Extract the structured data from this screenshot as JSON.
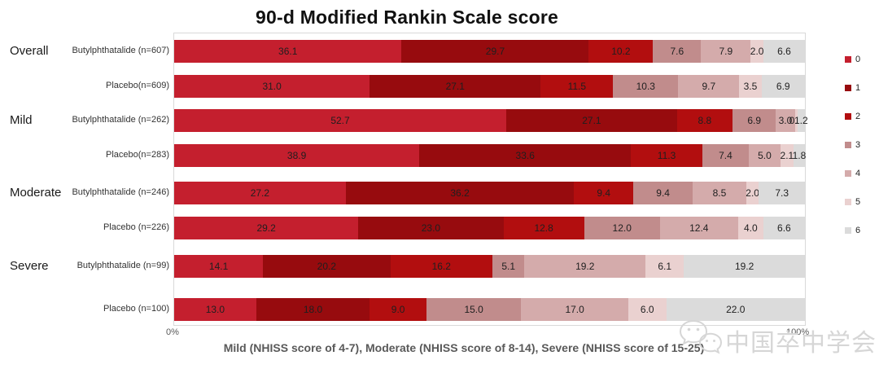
{
  "title": "90-d Modified Rankin Scale score",
  "axis": {
    "left_tick": "0%",
    "right_tick": "100%"
  },
  "caption": "Mild (NHISS score of 4-7), Moderate (NHISS score of 8-14), Severe (NHISS score of 15-25)",
  "watermark": {
    "icon": "wechat-logo",
    "text": "中国卒中学会"
  },
  "legend": {
    "position": "right",
    "items": [
      {
        "label": "0",
        "color": "#c41f2e"
      },
      {
        "label": "1",
        "color": "#970b0e"
      },
      {
        "label": "2",
        "color": "#b20e0f"
      },
      {
        "label": "3",
        "color": "#c18c8c"
      },
      {
        "label": "4",
        "color": "#d4abab"
      },
      {
        "label": "5",
        "color": "#ead1d0"
      },
      {
        "label": "6",
        "color": "#dbdbdb"
      }
    ]
  },
  "chart_data": {
    "type": "bar",
    "variant": "horizontal-stacked-100pct",
    "title": "90-d Modified Rankin Scale score",
    "stack_categories": [
      "0",
      "1",
      "2",
      "3",
      "4",
      "5",
      "6"
    ],
    "colors": [
      "#c41f2e",
      "#970b0e",
      "#b20e0f",
      "#c18c8c",
      "#d4abab",
      "#ead1d0",
      "#dbdbdb"
    ],
    "xlim": [
      0,
      100
    ],
    "x_tick_labels": [
      "0%",
      "100%"
    ],
    "grid": false,
    "legend_position": "right",
    "groups": [
      {
        "name": "Overall",
        "rows": [
          {
            "label": "Butylphthatalide (n=607)",
            "values": [
              36.1,
              29.7,
              10.2,
              7.6,
              7.9,
              2.0,
              6.6
            ],
            "value_labels": [
              "36.1",
              "29.7",
              "10.2",
              "7.6",
              "7.9",
              "2.0",
              "6.6"
            ]
          },
          {
            "label": "Placebo(n=609)",
            "values": [
              31.0,
              27.1,
              11.5,
              10.3,
              9.7,
              3.5,
              6.9
            ],
            "value_labels": [
              "31.0",
              "27.1",
              "11.5",
              "10.3",
              "9.7",
              "3.5",
              "6.9"
            ]
          }
        ]
      },
      {
        "name": "Mild",
        "rows": [
          {
            "label": "Butylphthatalide (n=262)",
            "values": [
              52.7,
              27.1,
              8.8,
              6.9,
              3.0,
              0.4,
              1.2
            ],
            "value_labels": [
              "52.7",
              "27.1",
              "8.8",
              "6.9",
              "3.0",
              "0.4",
              "1.2"
            ]
          },
          {
            "label": "Placebo(n=283)",
            "values": [
              38.9,
              33.6,
              11.3,
              7.4,
              5.0,
              2.1,
              1.8
            ],
            "value_labels": [
              "38.9",
              "33.6",
              "11.3",
              "7.4",
              "5.0",
              "2.1",
              "1.8"
            ]
          }
        ]
      },
      {
        "name": "Moderate",
        "rows": [
          {
            "label": "Butylphthatalide (n=246)",
            "values": [
              27.2,
              36.2,
              9.4,
              9.4,
              8.5,
              2.0,
              7.3
            ],
            "value_labels": [
              "27.2",
              "36.2",
              "9.4",
              "9.4",
              "8.5",
              "2.0",
              "7.3"
            ]
          },
          {
            "label": "Placebo (n=226)",
            "values": [
              29.2,
              23.0,
              12.8,
              12.0,
              12.4,
              4.0,
              6.6
            ],
            "value_labels": [
              "29.2",
              "23.0",
              "12.8",
              "12.0",
              "12.4",
              "4.0",
              "6.6"
            ]
          }
        ]
      },
      {
        "name": "Severe",
        "rows": [
          {
            "label": "Butylphthatalide (n=99)",
            "values": [
              14.1,
              20.2,
              16.2,
              5.1,
              19.2,
              6.1,
              19.2
            ],
            "value_labels": [
              "14.1",
              "20.2",
              "16.2",
              "5.1",
              "19.2",
              "6.1",
              "19.2"
            ]
          },
          {
            "label": "Placebo (n=100)",
            "values": [
              13.0,
              18.0,
              9.0,
              15.0,
              17.0,
              6.0,
              22.0
            ],
            "value_labels": [
              "13.0",
              "18.0",
              "9.0",
              "15.0",
              "17.0",
              "6.0",
              "22.0"
            ]
          }
        ]
      }
    ]
  }
}
